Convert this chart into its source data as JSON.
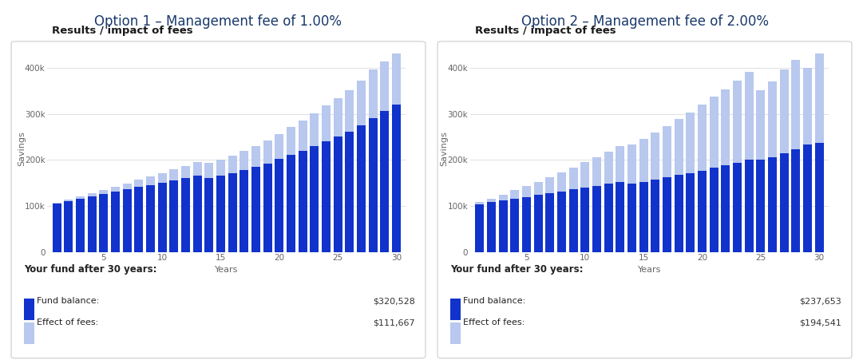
{
  "title1": "Option 1 – Management fee of 1.00%",
  "title2": "Option 2 – Management fee of 2.00%",
  "chart_subtitle": "Results / impact of fees",
  "xlabel": "Years",
  "ylabel": "Savings",
  "legend_label1": "Fund balance:",
  "legend_label2": "Effect of fees:",
  "footer_label": "Your fund after 30 years:",
  "opt1_fund_balance": "$320,528",
  "opt1_effect_fees": "$111,667",
  "opt2_fund_balance": "$237,653",
  "opt2_effect_fees": "$194,541",
  "bar_color_dark": "#1133cc",
  "bar_color_light": "#b8c8ee",
  "title_color": "#1a3a6b",
  "subtitle_color": "#1a1a1a",
  "background_color": "#ffffff",
  "panel_background": "#ffffff",
  "grid_color": "#e0e0e0",
  "footer_text_color": "#222222",
  "value_text_color": "#333333",
  "years": [
    1,
    2,
    3,
    4,
    5,
    6,
    7,
    8,
    9,
    10,
    11,
    12,
    13,
    14,
    15,
    16,
    17,
    18,
    19,
    20,
    21,
    22,
    23,
    24,
    25,
    26,
    27,
    28,
    29,
    30
  ],
  "opt1_fund": [
    105000,
    110000,
    116000,
    121000,
    126000,
    131000,
    136000,
    141000,
    146000,
    151000,
    156000,
    161000,
    166000,
    161000,
    166000,
    172000,
    178000,
    185000,
    192000,
    202000,
    212000,
    220000,
    230000,
    241000,
    251000,
    261000,
    276000,
    291000,
    306000,
    320528
  ],
  "opt1_fees": [
    2000,
    3500,
    5000,
    7000,
    9000,
    11000,
    13500,
    16000,
    18500,
    21000,
    23500,
    26000,
    29000,
    32000,
    35000,
    38000,
    42000,
    46000,
    50000,
    55000,
    60000,
    65000,
    71000,
    77000,
    83000,
    90000,
    97000,
    105000,
    108000,
    111667
  ],
  "opt2_fund": [
    104000,
    108000,
    112000,
    116000,
    120000,
    124000,
    128000,
    132000,
    136000,
    140000,
    144000,
    148000,
    152000,
    148000,
    152000,
    157000,
    162000,
    167000,
    172000,
    177000,
    183000,
    188000,
    194000,
    200000,
    200000,
    206000,
    215000,
    224000,
    233000,
    237653
  ],
  "opt2_fees": [
    4000,
    8000,
    13000,
    18000,
    23000,
    29000,
    35000,
    41000,
    48000,
    55000,
    62000,
    70000,
    78000,
    86000,
    94000,
    103000,
    112000,
    122000,
    132000,
    143000,
    154000,
    166000,
    179000,
    192000,
    152000,
    164000,
    181000,
    194000,
    168000,
    194541
  ],
  "ylim": [
    0,
    450000
  ],
  "yticks": [
    0,
    100000,
    200000,
    300000,
    400000
  ],
  "ytick_labels": [
    "0",
    "100k",
    "200k",
    "300k",
    "400k"
  ],
  "xticks": [
    5,
    10,
    15,
    20,
    25,
    30
  ]
}
